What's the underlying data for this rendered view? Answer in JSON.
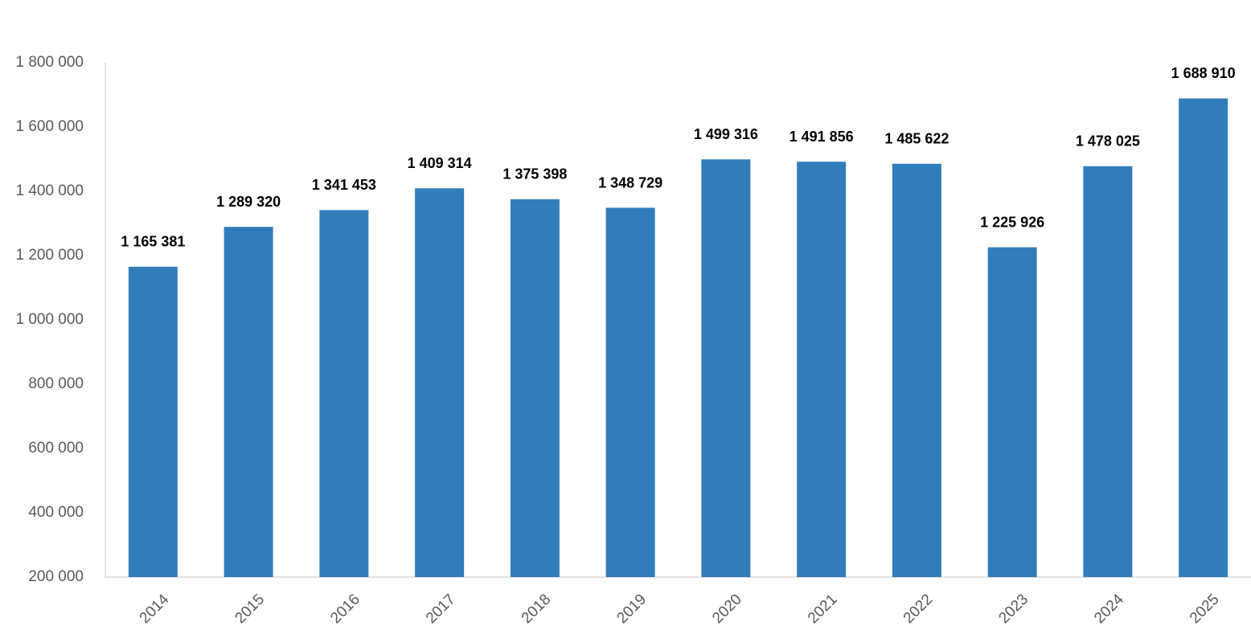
{
  "chart_data": {
    "type": "bar",
    "categories": [
      "2014",
      "2015",
      "2016",
      "2017",
      "2018",
      "2019",
      "2020",
      "2021",
      "2022",
      "2023",
      "2024",
      "2025"
    ],
    "values": [
      1165381,
      1289320,
      1341453,
      1409314,
      1375398,
      1348729,
      1499316,
      1491856,
      1485622,
      1225926,
      1478025,
      1688910
    ],
    "value_labels": [
      "1 165 381",
      "1 289 320",
      "1 341 453",
      "1 409 314",
      "1 375 398",
      "1 348 729",
      "1 499 316",
      "1 491 856",
      "1 485 622",
      "1 225 926",
      "1 478 025",
      "1 688 910"
    ],
    "color": "#317dba",
    "ylim": [
      200000,
      1800000
    ],
    "yticks": [
      {
        "value": 200000,
        "label": "200 000"
      },
      {
        "value": 400000,
        "label": "400 000"
      },
      {
        "value": 600000,
        "label": "600 000"
      },
      {
        "value": 800000,
        "label": "800 000"
      },
      {
        "value": 1000000,
        "label": "1 000 000"
      },
      {
        "value": 1200000,
        "label": "1 200 000"
      },
      {
        "value": 1400000,
        "label": "1 400 000"
      },
      {
        "value": 1600000,
        "label": "1 600 000"
      },
      {
        "value": 1800000,
        "label": "1 800 000"
      }
    ],
    "grid": false
  }
}
